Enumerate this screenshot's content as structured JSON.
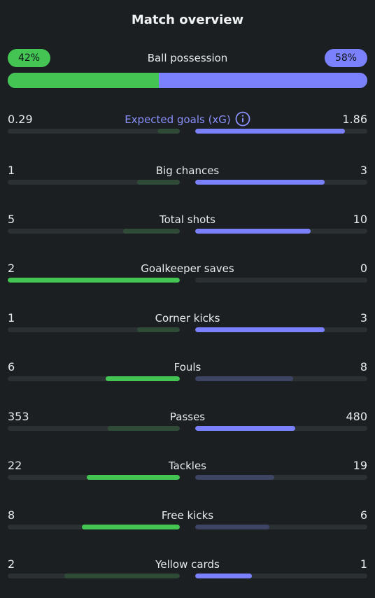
{
  "title": "Match overview",
  "possession": {
    "label": "Ball possession",
    "home": "42%",
    "away": "58%",
    "home_fraction": 0.42,
    "away_fraction": 0.58,
    "home_color": "#44c553",
    "away_color": "#7b80fc"
  },
  "stats": [
    {
      "label": "Expected goals (xG)",
      "home": "0.29",
      "away": "1.86",
      "home_fraction": 0.13,
      "away_fraction": 0.87,
      "winner": "away",
      "icon": "info-icon",
      "highlight": true
    },
    {
      "label": "Big chances",
      "home": "1",
      "away": "3",
      "home_fraction": 0.25,
      "away_fraction": 0.75,
      "winner": "away"
    },
    {
      "label": "Total shots",
      "home": "5",
      "away": "10",
      "home_fraction": 0.33,
      "away_fraction": 0.67,
      "winner": "away"
    },
    {
      "label": "Goalkeeper saves",
      "home": "2",
      "away": "0",
      "home_fraction": 1.0,
      "away_fraction": 0.0,
      "winner": "home"
    },
    {
      "label": "Corner kicks",
      "home": "1",
      "away": "3",
      "home_fraction": 0.25,
      "away_fraction": 0.75,
      "winner": "away"
    },
    {
      "label": "Fouls",
      "home": "6",
      "away": "8",
      "home_fraction": 0.43,
      "away_fraction": 0.57,
      "winner": "home"
    },
    {
      "label": "Passes",
      "home": "353",
      "away": "480",
      "home_fraction": 0.42,
      "away_fraction": 0.58,
      "winner": "away"
    },
    {
      "label": "Tackles",
      "home": "22",
      "away": "19",
      "home_fraction": 0.54,
      "away_fraction": 0.46,
      "winner": "home"
    },
    {
      "label": "Free kicks",
      "home": "8",
      "away": "6",
      "home_fraction": 0.57,
      "away_fraction": 0.43,
      "winner": "home"
    },
    {
      "label": "Yellow cards",
      "home": "2",
      "away": "1",
      "home_fraction": 0.67,
      "away_fraction": 0.33,
      "winner": "away"
    }
  ]
}
